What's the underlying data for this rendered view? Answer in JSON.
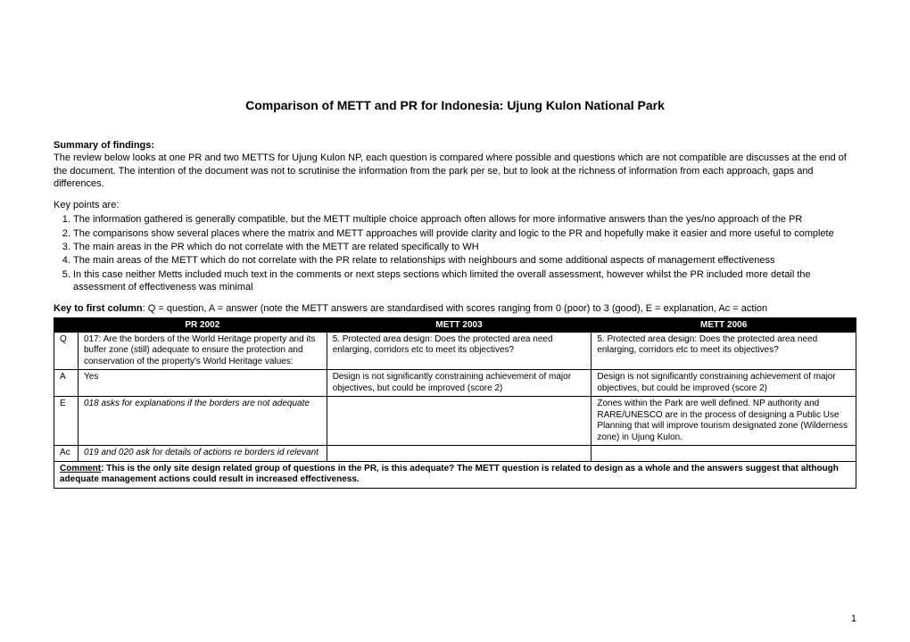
{
  "title": "Comparison of METT and PR for Indonesia: Ujung Kulon National Park",
  "summary": {
    "label": "Summary of findings:",
    "text": "The review below looks at one PR and two METTS for Ujung Kulon NP, each question is compared where possible and questions which are not compatible are discusses at the end of the document. The intention of the document was not to scrutinise the information from the park per se, but to look at the richness of information from each approach, gaps and differences."
  },
  "keypoints": {
    "label": "Key points are:",
    "items": [
      "The information gathered is generally compatible, but the METT multiple choice approach often allows for more informative answers than the yes/no approach of the PR",
      "The comparisons show several places where the matrix and METT approaches will provide clarity and logic to the PR and hopefully make it easier and more useful to complete",
      "The main areas in the PR which do not correlate with the METT are related specifically to WH",
      "The main areas of the METT which do not correlate with the PR relate to relationships with neighbours and some additional aspects of management effectiveness",
      "In this case neither Metts included much text in the comments or next steps sections which limited the overall assessment, however whilst the PR included more detail the assessment of effectiveness was minimal"
    ]
  },
  "key_desc": {
    "prefix": "Key to first column",
    "text": ": Q = question, A = answer (note the METT answers are standardised with scores ranging from 0 (poor) to 3 (good), E = explanation, Ac = action"
  },
  "table": {
    "headers": [
      "",
      "PR 2002",
      "METT 2003",
      "METT 2006"
    ],
    "rows": [
      {
        "k": "Q",
        "c1": "017: Are the borders of the World Heritage property and its buffer zone (still) adequate to ensure the protection and conservation of the property's World Heritage values:",
        "c2": "5. Protected area design: Does the protected area need enlarging, corridors etc to meet its objectives?",
        "c3": "5. Protected area design: Does the protected area need enlarging, corridors etc to meet its objectives?"
      },
      {
        "k": "A",
        "c1": "Yes",
        "c2": "Design is not significantly constraining achievement of major objectives, but could be improved (score 2)",
        "c3": "Design is not significantly constraining achievement of major objectives, but could be improved (score 2)"
      },
      {
        "k": "E",
        "c1_italic": "018 asks for explanations if the borders are not adequate",
        "c2": "",
        "c3": "Zones within the Park are well defined.  NP authority and RARE/UNESCO are in the process of designing a Public Use Planning that will improve tourism designated zone (Wilderness zone) in Ujung Kulon."
      },
      {
        "k": "Ac",
        "c1_italic": "019 and 020 ask for details of actions re borders id relevant",
        "c2": "",
        "c3": ""
      }
    ],
    "comment": {
      "label": "Comment",
      "text": ": This is the only site design related group of questions in the PR, is this adequate? The METT question is related to design as a whole and the answers suggest that although adequate management actions could result in increased effectiveness."
    }
  },
  "page_number": "1"
}
